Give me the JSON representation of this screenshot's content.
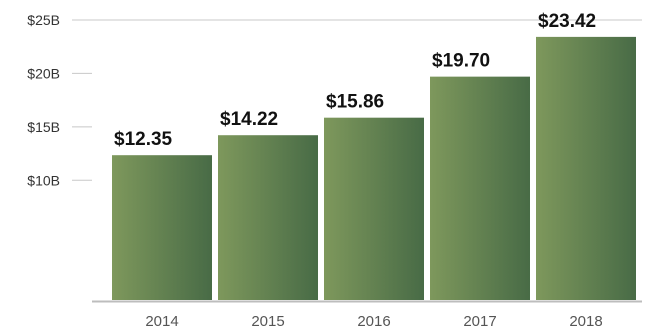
{
  "chart_data": {
    "type": "bar",
    "title": "",
    "xlabel": "",
    "ylabel": "",
    "categories": [
      "2014",
      "2015",
      "2016",
      "2017",
      "2018"
    ],
    "values": [
      12.35,
      14.22,
      15.86,
      19.7,
      23.42
    ],
    "data_labels": [
      "$12.35",
      "$14.22",
      "$15.86",
      "$19.70",
      "$23.42"
    ],
    "y_ticks": [
      {
        "value": 10,
        "label": "$10B"
      },
      {
        "value": 15,
        "label": "$15B"
      },
      {
        "value": 20,
        "label": "$20B"
      },
      {
        "value": 25,
        "label": "$25B"
      }
    ],
    "ylim": [
      -1.2,
      25
    ],
    "grid": false,
    "legend": "none",
    "colors": {
      "bar_gradient_start": "#7E985C",
      "bar_gradient_end": "#486B46",
      "axis": "#BDBDBD",
      "tick": "#C8C8C8"
    }
  }
}
